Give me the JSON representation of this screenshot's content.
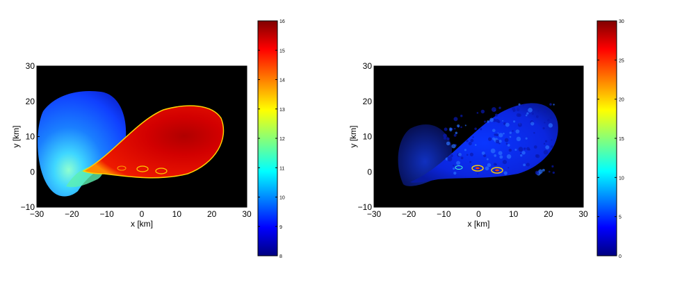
{
  "chart_data": [
    {
      "type": "heatmap",
      "xlabel": "x [km]",
      "ylabel": "y [km]",
      "xlim": [
        -30,
        30
      ],
      "ylim": [
        -10,
        30
      ],
      "x_ticks": [
        -30,
        -20,
        -10,
        0,
        10,
        20,
        30
      ],
      "y_ticks": [
        -10,
        0,
        10,
        20,
        30
      ],
      "x_tick_labels": [
        "−30",
        "−20",
        "−10",
        "0",
        "10",
        "20",
        "30"
      ],
      "y_tick_labels": [
        "−10",
        "0",
        "10",
        "20",
        "30"
      ],
      "colormap": "jet",
      "background": "#000000",
      "colorbar": {
        "range": [
          8,
          16
        ],
        "ticks": [
          8,
          9,
          10,
          11,
          12,
          13,
          14,
          15,
          16
        ],
        "tick_labels": [
          "8",
          "9",
          "10",
          "11",
          "12",
          "13",
          "14",
          "15",
          "16"
        ]
      }
    },
    {
      "type": "heatmap",
      "xlabel": "x [km]",
      "ylabel": "y [km]",
      "xlim": [
        -30,
        30
      ],
      "ylim": [
        -10,
        30
      ],
      "x_ticks": [
        -30,
        -20,
        -10,
        0,
        10,
        20,
        30
      ],
      "y_ticks": [
        -10,
        0,
        10,
        20,
        30
      ],
      "x_tick_labels": [
        "−30",
        "−20",
        "−10",
        "0",
        "10",
        "20",
        "30"
      ],
      "y_tick_labels": [
        "−10",
        "0",
        "10",
        "20",
        "30"
      ],
      "colormap": "jet",
      "background": "#000000",
      "colorbar": {
        "range": [
          0,
          30
        ],
        "ticks": [
          0,
          5,
          10,
          15,
          20,
          25,
          30
        ],
        "tick_labels": [
          "0",
          "5",
          "10",
          "15",
          "20",
          "25",
          "30"
        ]
      }
    }
  ]
}
